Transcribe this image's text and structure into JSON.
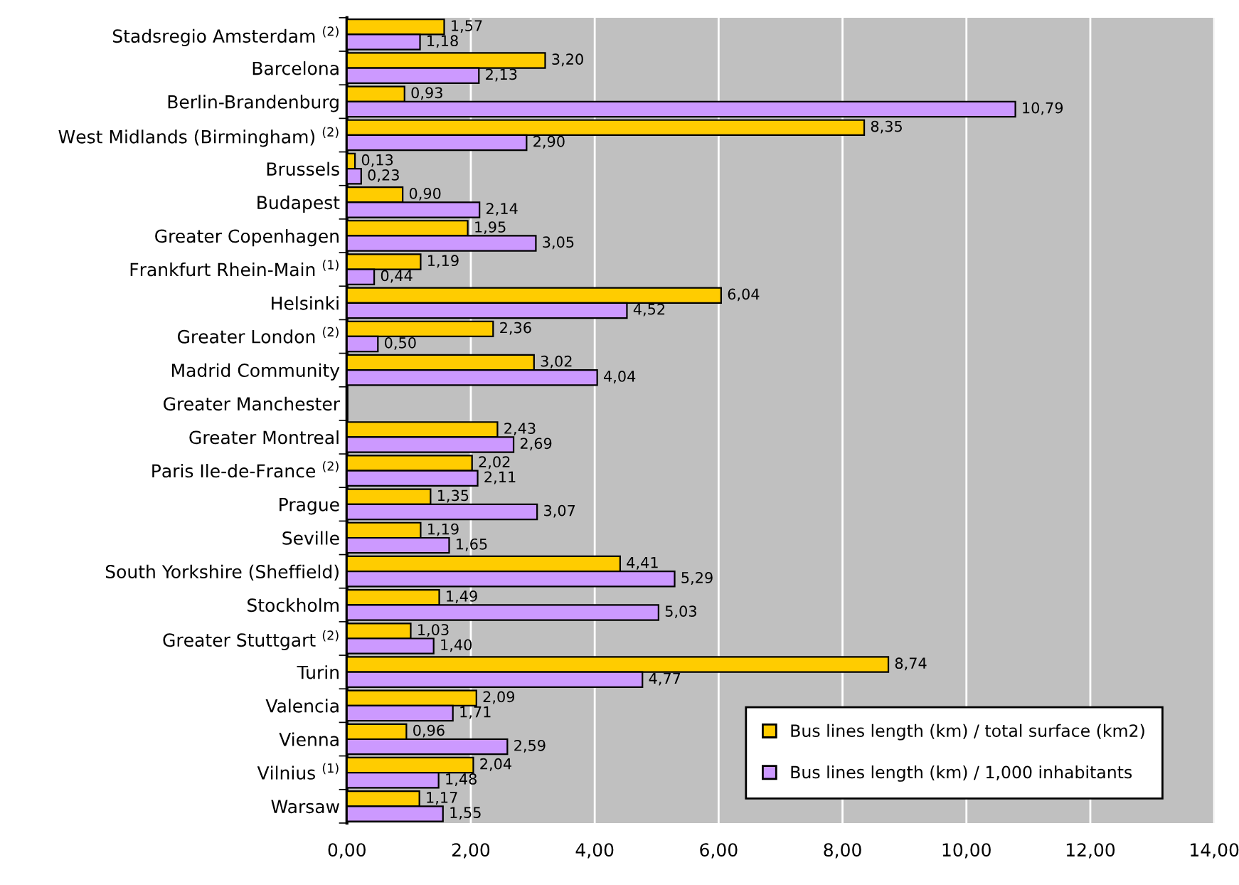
{
  "chart_data": {
    "type": "bar",
    "orientation": "horizontal",
    "categories": [
      "Stadsregio Amsterdam $^{(2)}$",
      "Barcelona",
      "Berlin-Brandenburg",
      "West Midlands (Birmingham) $^{(2)}$",
      "Brussels",
      "Budapest",
      "Greater Copenhagen",
      "Frankfurt Rhein-Main $^{(1)}$",
      "Helsinki",
      "Greater London $^{(2)}$",
      "Madrid Community",
      "Greater Manchester",
      "Greater Montreal",
      "Paris Ile-de-France $^{(2)}$",
      "Prague",
      "Seville",
      "South Yorkshire (Sheffield)",
      "Stockholm",
      "Greater Stuttgart $^{(2)}$",
      "Turin",
      "Valencia",
      "Vienna",
      "Vilnius $^{(1)}$",
      "Warsaw"
    ],
    "series": [
      {
        "name": "Bus lines length (km) / total surface (km2)",
        "color": "#ffcc00",
        "values": [
          1.57,
          3.2,
          0.93,
          8.35,
          0.13,
          0.9,
          1.95,
          1.19,
          6.04,
          2.36,
          3.02,
          null,
          2.43,
          2.02,
          1.35,
          1.19,
          4.41,
          1.49,
          1.03,
          8.74,
          2.09,
          0.96,
          2.04,
          1.17
        ],
        "value_labels": [
          "1,57",
          "3,20",
          "0,93",
          "8,35",
          "0,13",
          "0,90",
          "1,95",
          "1,19",
          "6,04",
          "2,36",
          "3,02",
          null,
          "2,43",
          "2,02",
          "1,35",
          "1,19",
          "4,41",
          "1,49",
          "1,03",
          "8,74",
          "2,09",
          "0,96",
          "2,04",
          "1,17"
        ]
      },
      {
        "name": "Bus lines length (km) / 1,000 inhabitants",
        "color": "#cc99ff",
        "values": [
          1.18,
          2.13,
          10.79,
          2.9,
          0.23,
          2.14,
          3.05,
          0.44,
          4.52,
          0.5,
          4.04,
          null,
          2.69,
          2.11,
          3.07,
          1.65,
          5.29,
          5.03,
          1.4,
          4.77,
          1.71,
          2.59,
          1.48,
          1.55
        ],
        "value_labels": [
          "1,18",
          "2,13",
          "10,79",
          "2,90",
          "0,23",
          "2,14",
          "3,05",
          "0,44",
          "4,52",
          "0,50",
          "4,04",
          null,
          "2,69",
          "2,11",
          "3,07",
          "1,65",
          "5,29",
          "5,03",
          "1,40",
          "4,77",
          "1,71",
          "2,59",
          "1,48",
          "1,55"
        ]
      }
    ],
    "xlim": [
      0,
      14
    ],
    "xticks": [
      {
        "value": 0,
        "label": "0,00"
      },
      {
        "value": 2,
        "label": "2,00"
      },
      {
        "value": 4,
        "label": "4,00"
      },
      {
        "value": 6,
        "label": "6,00"
      },
      {
        "value": 8,
        "label": "8,00"
      },
      {
        "value": 10,
        "label": "10,00"
      },
      {
        "value": 12,
        "label": "12,00"
      },
      {
        "value": 14,
        "label": "14,00"
      }
    ],
    "grid": "x",
    "legend": "bottom right"
  }
}
